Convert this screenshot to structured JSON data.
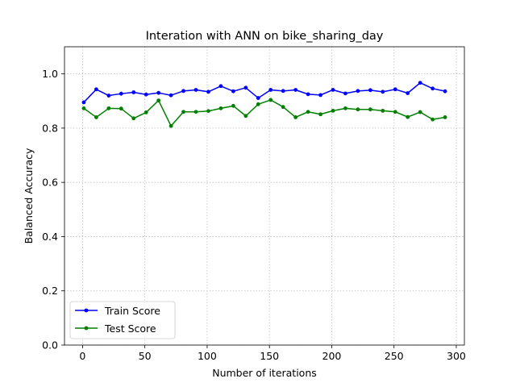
{
  "chart_data": {
    "type": "line",
    "title": "Interation with ANN on bike_sharing_day",
    "xlabel": "Number of iterations",
    "ylabel": "Balanced Accuracy",
    "xlim": [
      -14.5,
      306.5
    ],
    "ylim": [
      0.0,
      1.1
    ],
    "xticks": [
      0,
      50,
      100,
      150,
      200,
      250,
      300
    ],
    "yticks": [
      0.0,
      0.2,
      0.4,
      0.6,
      0.8,
      1.0
    ],
    "xtick_labels": [
      "0",
      "50",
      "100",
      "150",
      "200",
      "250",
      "300"
    ],
    "ytick_labels": [
      "0.0",
      "0.2",
      "0.4",
      "0.6",
      "0.8",
      "1.0"
    ],
    "grid": true,
    "legend_position": "lower-left",
    "x": [
      1,
      11,
      21,
      31,
      41,
      51,
      61,
      71,
      81,
      91,
      101,
      111,
      121,
      131,
      141,
      151,
      161,
      171,
      181,
      191,
      201,
      211,
      221,
      231,
      241,
      251,
      261,
      271,
      281,
      291
    ],
    "series": [
      {
        "name": "Train Score",
        "color": "#0000ff",
        "values": [
          0.895,
          0.943,
          0.92,
          0.927,
          0.932,
          0.924,
          0.93,
          0.921,
          0.937,
          0.941,
          0.934,
          0.955,
          0.936,
          0.949,
          0.911,
          0.941,
          0.937,
          0.941,
          0.925,
          0.922,
          0.941,
          0.928,
          0.937,
          0.94,
          0.934,
          0.943,
          0.929,
          0.967,
          0.946,
          0.936
        ]
      },
      {
        "name": "Test Score",
        "color": "#008000",
        "values": [
          0.873,
          0.84,
          0.873,
          0.872,
          0.836,
          0.858,
          0.902,
          0.808,
          0.86,
          0.86,
          0.863,
          0.873,
          0.882,
          0.845,
          0.888,
          0.904,
          0.878,
          0.84,
          0.86,
          0.851,
          0.864,
          0.873,
          0.869,
          0.869,
          0.864,
          0.86,
          0.841,
          0.859,
          0.832,
          0.84
        ]
      }
    ]
  }
}
